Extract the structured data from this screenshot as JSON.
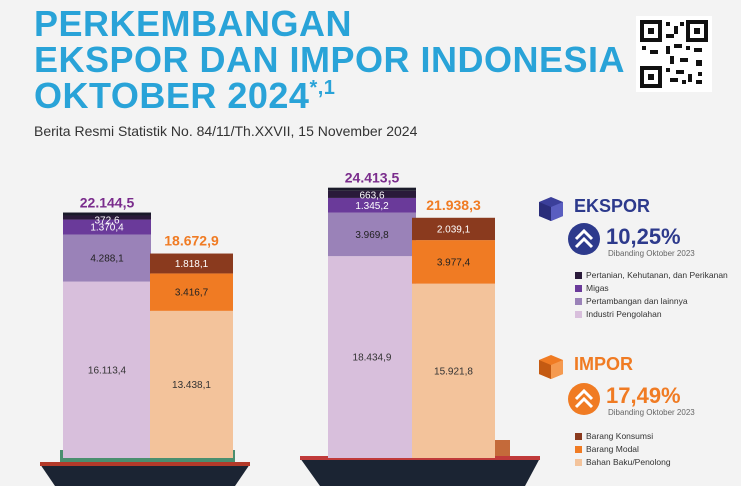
{
  "header": {
    "title_line1": "PERKEMBANGAN",
    "title_line2": "EKSPOR DAN IMPOR INDONESIA",
    "title_line3": "OKTOBER 2024",
    "title_mark": "*,1",
    "subtitle": "Berita Resmi Statistik No. 84/11/Th.XXVII, 15 November 2024"
  },
  "colors": {
    "title": "#29a3d8",
    "ekspor_total": "#7a2c8c",
    "impor_total": "#f07b23",
    "ekspor_pertanian": "#2a1a3a",
    "ekspor_migas": "#6a3a9a",
    "ekspor_pertambangan": "#9a82b8",
    "ekspor_industri": "#d8bfdc",
    "impor_konsumsi": "#8a3a1e",
    "impor_modal": "#f07b23",
    "impor_bahan": "#f3c39b"
  },
  "ekspor_panel": {
    "title": "EKSPOR",
    "pct": "10,25%",
    "compare": "Dibanding Oktober 2023",
    "legend": [
      "Pertanian, Kehutanan, dan Perikanan",
      "Migas",
      "Pertambangan dan lainnya",
      "Industri Pengolahan"
    ]
  },
  "impor_panel": {
    "title": "IMPOR",
    "pct": "17,49%",
    "compare": "Dibanding Oktober 2023",
    "legend": [
      "Barang Konsumsi",
      "Barang Modal",
      "Bahan Baku/Penolong"
    ]
  },
  "chart_data": {
    "type": "bar",
    "stacked": true,
    "groups": [
      {
        "ekspor": {
          "total_label": "22.144,5",
          "values": [
            16113.4,
            4288.1,
            1370.4,
            372.6
          ],
          "labels": [
            "16.113,4",
            "4.288,1",
            "1.370,4",
            "372,6"
          ]
        },
        "impor": {
          "total_label": "18.672,9",
          "values": [
            13438.1,
            3416.7,
            1818.1
          ],
          "labels": [
            "13.438,1",
            "3.416,7",
            "1.818,1"
          ]
        }
      },
      {
        "ekspor": {
          "total_label": "24.413,5",
          "values": [
            18434.9,
            3969.8,
            1345.2,
            663.6
          ],
          "labels": [
            "18.434,9",
            "3.969,8",
            "1.345,2",
            "663,6"
          ]
        },
        "impor": {
          "total_label": "21.938,3",
          "values": [
            15921.8,
            3977.4,
            2039.1
          ],
          "labels": [
            "15.921,8",
            "3.977,4",
            "2.039,1"
          ]
        }
      }
    ]
  }
}
